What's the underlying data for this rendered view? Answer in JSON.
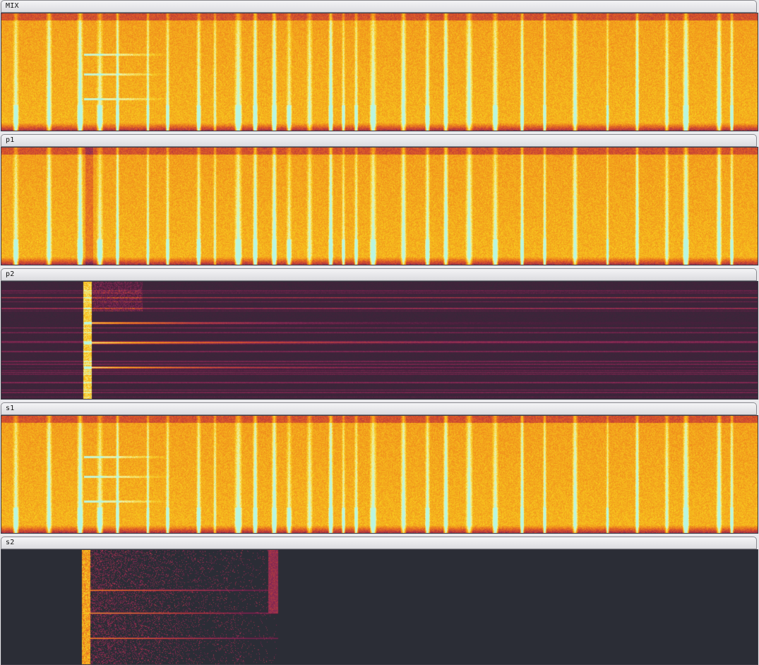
{
  "tracks": [
    {
      "id": "mix",
      "label": "MIX",
      "style": "full"
    },
    {
      "id": "p1",
      "label": "p1",
      "style": "full"
    },
    {
      "id": "p2",
      "label": "p2",
      "style": "sparse"
    },
    {
      "id": "s1",
      "label": "s1",
      "style": "full"
    },
    {
      "id": "s2",
      "label": "s2",
      "style": "burst"
    }
  ],
  "colors": {
    "colormap": [
      "#2b2d36",
      "#4a1f3d",
      "#8a2a55",
      "#d24a2e",
      "#f08a1c",
      "#f8c81e",
      "#f2f09a",
      "#b8f6e0"
    ],
    "page_background": "#e9e9ec",
    "header_background": "#dcdce0"
  }
}
